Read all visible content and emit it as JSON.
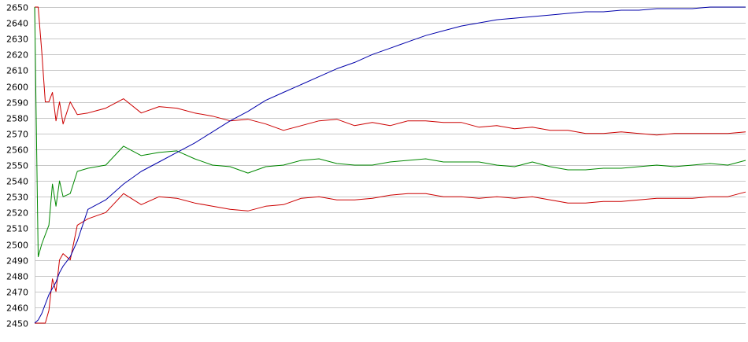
{
  "chart_data": {
    "type": "line",
    "ylim": [
      2450,
      2650
    ],
    "yticks": [
      2450,
      2460,
      2470,
      2480,
      2490,
      2500,
      2510,
      2520,
      2530,
      2540,
      2550,
      2560,
      2570,
      2580,
      2590,
      2600,
      2610,
      2620,
      2630,
      2640,
      2650
    ],
    "grid": true,
    "x": [
      0,
      1,
      2,
      3,
      4,
      5,
      6,
      7,
      8,
      10,
      12,
      15,
      20,
      25,
      30,
      35,
      40,
      45,
      50,
      55,
      60,
      65,
      70,
      75,
      80,
      85,
      90,
      95,
      100,
      105,
      110,
      115,
      120,
      125,
      130,
      135,
      140,
      145,
      150,
      155,
      160,
      165,
      170,
      175,
      180,
      185,
      190,
      195,
      200
    ],
    "series": [
      {
        "color": "#cc0000",
        "values": [
          2650,
          2650,
          2622,
          2590,
          2590,
          2596,
          2578,
          2590,
          2576,
          2590,
          2582,
          2583,
          2586,
          2592,
          2583,
          2587,
          2586,
          2583,
          2581,
          2578,
          2579,
          2576,
          2572,
          2575,
          2578,
          2579,
          2575,
          2577,
          2575,
          2578,
          2578,
          2577,
          2577,
          2574,
          2575,
          2573,
          2574,
          2572,
          2572,
          2570,
          2570,
          2571,
          2570,
          2569,
          2570,
          2570,
          2570,
          2570,
          2571
        ]
      },
      {
        "color": "#008800",
        "values": [
          2650,
          2492,
          2500,
          2506,
          2512,
          2538,
          2524,
          2540,
          2530,
          2532,
          2546,
          2548,
          2550,
          2562,
          2556,
          2558,
          2559,
          2554,
          2550,
          2549,
          2545,
          2549,
          2550,
          2553,
          2554,
          2551,
          2550,
          2550,
          2552,
          2553,
          2554,
          2552,
          2552,
          2552,
          2550,
          2549,
          2552,
          2549,
          2547,
          2547,
          2548,
          2548,
          2549,
          2550,
          2549,
          2550,
          2551,
          2550,
          2553
        ]
      },
      {
        "color": "#cc0000",
        "values": [
          2450,
          2450,
          2450,
          2450,
          2458,
          2478,
          2470,
          2490,
          2494,
          2490,
          2512,
          2516,
          2520,
          2532,
          2525,
          2530,
          2529,
          2526,
          2524,
          2522,
          2521,
          2524,
          2525,
          2529,
          2530,
          2528,
          2528,
          2529,
          2531,
          2532,
          2532,
          2530,
          2530,
          2529,
          2530,
          2529,
          2530,
          2528,
          2526,
          2526,
          2527,
          2527,
          2528,
          2529,
          2529,
          2529,
          2530,
          2530,
          2533
        ]
      },
      {
        "color": "#0000aa",
        "values": [
          2450,
          2452,
          2456,
          2462,
          2468,
          2472,
          2476,
          2482,
          2486,
          2492,
          2502,
          2522,
          2528,
          2538,
          2546,
          2552,
          2558,
          2564,
          2571,
          2578,
          2584,
          2591,
          2596,
          2601,
          2606,
          2611,
          2615,
          2620,
          2624,
          2628,
          2632,
          2635,
          2638,
          2640,
          2642,
          2643,
          2644,
          2645,
          2646,
          2647,
          2647,
          2648,
          2648,
          2649,
          2649,
          2649,
          2650,
          2650,
          2650
        ]
      }
    ]
  }
}
